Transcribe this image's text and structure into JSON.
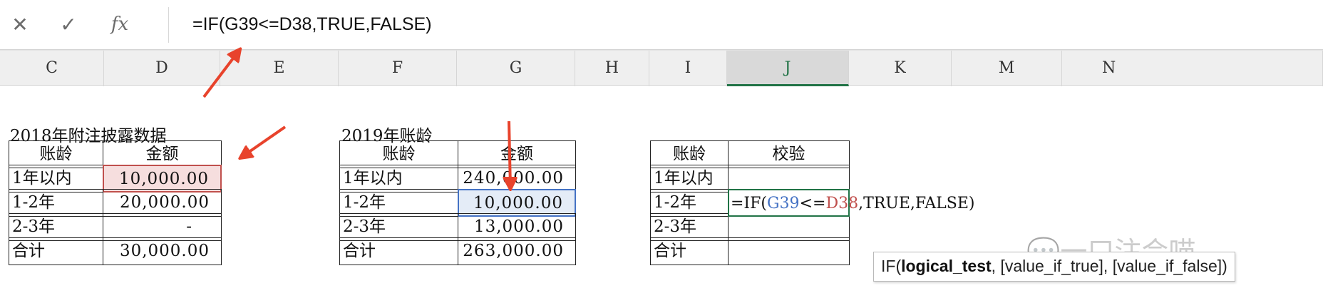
{
  "formula_bar": {
    "cancel_icon": "close-icon",
    "confirm_icon": "check-icon",
    "fx_label": "fx",
    "formula": "=IF(G39<=D38,TRUE,FALSE)"
  },
  "columns": [
    "C",
    "D",
    "E",
    "F",
    "G",
    "H",
    "I",
    "J",
    "K",
    "M",
    "N"
  ],
  "selected_column": "J",
  "table1": {
    "caption": "2018年附注披露数据",
    "headers": [
      "账龄",
      "金额"
    ],
    "rows": [
      [
        "1年以内",
        "10,000.00"
      ],
      [
        "1-2年",
        "20,000.00"
      ],
      [
        "2-3年",
        "-"
      ],
      [
        "合计",
        "30,000.00"
      ]
    ]
  },
  "table2": {
    "caption": "2019年账龄",
    "headers": [
      "账龄",
      "金额"
    ],
    "rows": [
      [
        "1年以内",
        "240,000.00"
      ],
      [
        "1-2年",
        "10,000.00"
      ],
      [
        "2-3年",
        "13,000.00"
      ],
      [
        "合计",
        "263,000.00"
      ]
    ]
  },
  "table3": {
    "headers": [
      "账龄",
      "校验"
    ],
    "rows": [
      [
        "1年以内",
        ""
      ],
      [
        "1-2年",
        ""
      ],
      [
        "2-3年",
        ""
      ],
      [
        "合计",
        ""
      ]
    ],
    "edit": {
      "prefix": "=IF(",
      "ref1": "G39",
      "op": "<=",
      "ref2": "D38",
      "rest": ",TRUE,FALSE)"
    }
  },
  "tooltip": {
    "fn": "IF(",
    "arg1": "logical_test",
    "rest": ", [value_if_true], [value_if_false])"
  },
  "watermark": "一口注会喵",
  "colors": {
    "excel_green": "#217346",
    "ref_blue": "#4472c4",
    "ref_red": "#c0504d",
    "arrow_red": "#e8432c"
  }
}
